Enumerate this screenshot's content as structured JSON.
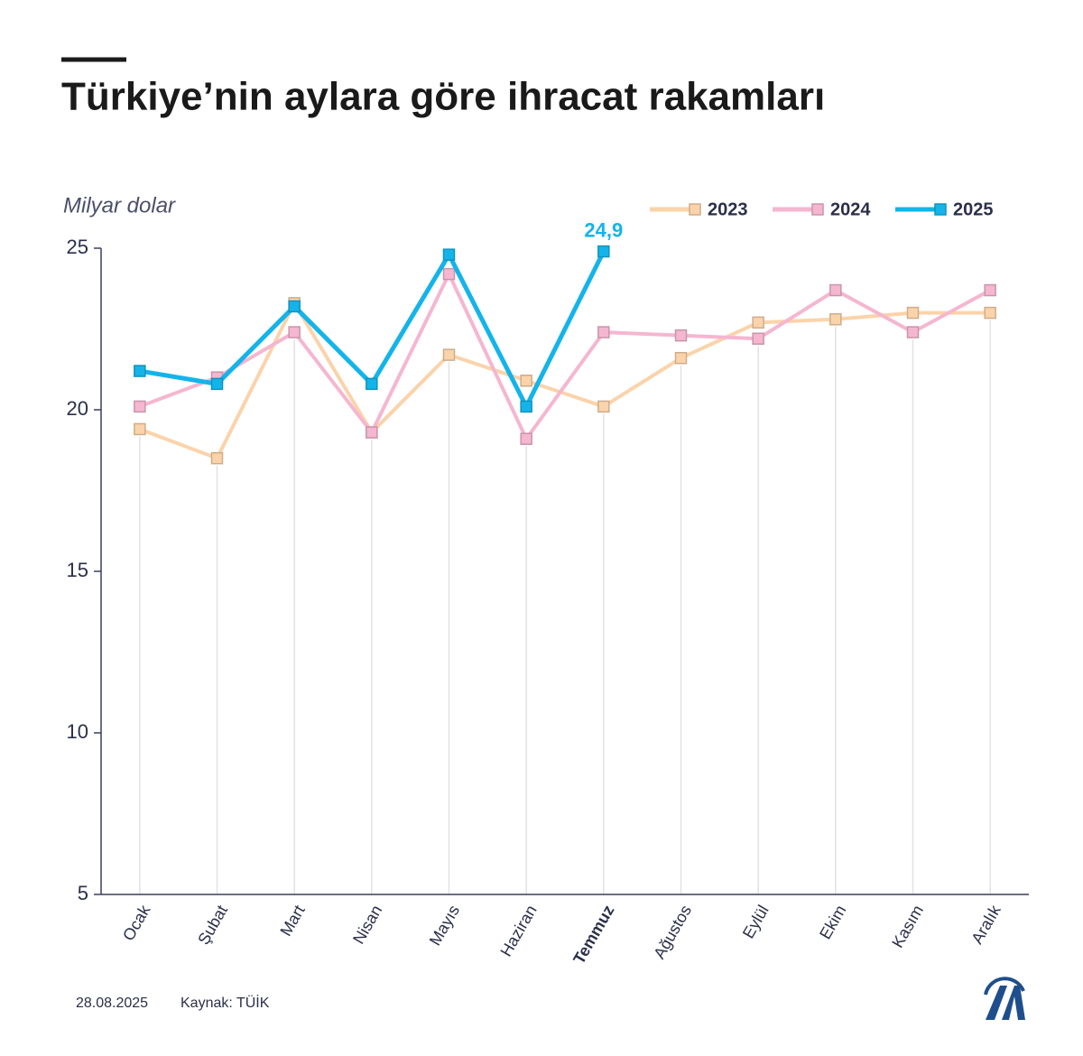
{
  "chart_data": {
    "type": "line",
    "title": "Türkiye’nin aylara göre ihracat rakamları",
    "y_axis_label": "Milyar dolar",
    "categories": [
      "Ocak",
      "Şubat",
      "Mart",
      "Nisan",
      "Mayıs",
      "Haziran",
      "Temmuz",
      "Ağustos",
      "Eylül",
      "Ekim",
      "Kasım",
      "Aralık"
    ],
    "series": [
      {
        "name": "2023",
        "color": "#fbd3aa",
        "values": [
          19.4,
          18.5,
          23.3,
          19.3,
          21.7,
          20.9,
          20.1,
          21.6,
          22.7,
          22.8,
          23.0,
          23.0
        ]
      },
      {
        "name": "2024",
        "color": "#f5b6d0",
        "values": [
          20.1,
          21.0,
          22.4,
          19.3,
          24.2,
          19.1,
          22.4,
          22.3,
          22.2,
          23.7,
          22.4,
          23.7
        ]
      },
      {
        "name": "2025",
        "color": "#14b4ea",
        "values": [
          21.2,
          20.8,
          23.2,
          20.8,
          24.8,
          20.1,
          24.9,
          null,
          null,
          null,
          null,
          null
        ],
        "value_labels": [
          null,
          null,
          null,
          null,
          null,
          null,
          "24,9",
          null,
          null,
          null,
          null,
          null
        ]
      }
    ],
    "ylim": [
      5,
      25
    ],
    "yticks": [
      5,
      10,
      15,
      20,
      25
    ],
    "legend": "top-right",
    "date": "28.08.2025",
    "source": "Kaynak: TÜİK"
  }
}
